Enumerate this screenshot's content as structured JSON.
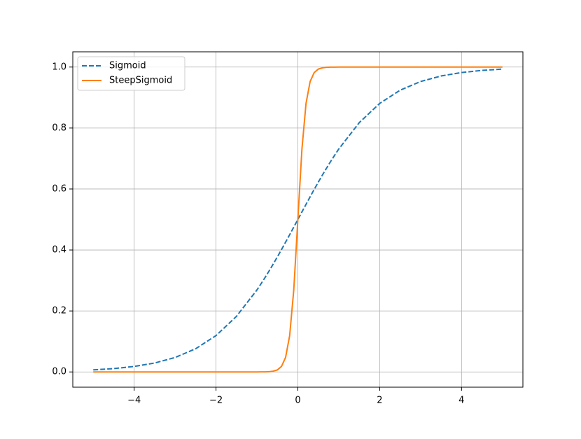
{
  "chart_data": {
    "type": "line",
    "x": [
      -5,
      -4.5,
      -4,
      -3.5,
      -3,
      -2.5,
      -2,
      -1.5,
      -1,
      -0.9,
      -0.8,
      -0.7,
      -0.6,
      -0.5,
      -0.4,
      -0.3,
      -0.2,
      -0.1,
      0,
      0.1,
      0.2,
      0.3,
      0.4,
      0.5,
      0.6,
      0.7,
      0.8,
      0.9,
      1,
      1.5,
      2,
      2.5,
      3,
      3.5,
      4,
      4.5,
      5
    ],
    "series": [
      {
        "name": "Sigmoid",
        "color": "#1f77b4",
        "linestyle": "dashed",
        "values": [
          0.0067,
          0.011,
          0.018,
          0.0293,
          0.0474,
          0.0759,
          0.1192,
          0.1824,
          0.2689,
          0.2891,
          0.31,
          0.3318,
          0.3543,
          0.3775,
          0.4013,
          0.4256,
          0.4502,
          0.475,
          0.5,
          0.525,
          0.5498,
          0.5744,
          0.5987,
          0.6225,
          0.6457,
          0.6682,
          0.69,
          0.7109,
          0.7311,
          0.8176,
          0.8808,
          0.9241,
          0.9526,
          0.9707,
          0.982,
          0.989,
          0.9933
        ]
      },
      {
        "name": "SteepSigmoid",
        "color": "#ff7f0e",
        "linestyle": "solid",
        "values": [
          0,
          0,
          0,
          0,
          0,
          0,
          0,
          0,
          0,
          0.0001,
          0.0003,
          0.0009,
          0.0025,
          0.0067,
          0.018,
          0.0474,
          0.1192,
          0.2689,
          0.5,
          0.7311,
          0.8808,
          0.9526,
          0.982,
          0.9933,
          0.9975,
          0.9991,
          0.9997,
          0.9999,
          1,
          1,
          1,
          1,
          1,
          1,
          1,
          1,
          1
        ]
      }
    ],
    "xlim": [
      -5.5,
      5.5
    ],
    "xticks": [
      {
        "value": -4,
        "label": "−4"
      },
      {
        "value": -2,
        "label": "−2"
      },
      0,
      2,
      4
    ],
    "ylim": [
      -0.05,
      1.05
    ],
    "yticks": [
      {
        "value": 0,
        "label": "0.0"
      },
      0.2,
      0.4,
      0.6,
      0.8,
      {
        "value": 1,
        "label": "1.0"
      }
    ],
    "grid": true,
    "legend": "upper-left"
  }
}
